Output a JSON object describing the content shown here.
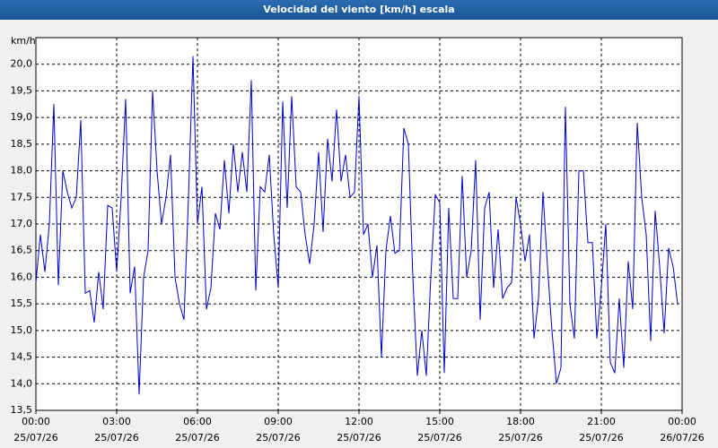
{
  "chart_data": {
    "type": "line",
    "title": "Velocidad del viento [km/h] escala",
    "y_label": "km/h",
    "x": [
      0,
      10,
      20,
      30,
      40,
      50,
      60,
      70,
      80,
      90,
      100,
      110,
      120,
      130,
      140,
      150,
      160,
      170,
      180,
      190,
      200,
      210,
      220,
      230,
      240,
      250,
      260,
      270,
      280,
      290,
      300,
      310,
      320,
      330,
      340,
      350,
      360,
      370,
      380,
      390,
      400,
      410,
      420,
      430,
      440,
      450,
      460,
      470,
      480,
      490,
      500,
      510,
      520,
      530,
      540,
      550,
      560,
      570,
      580,
      590,
      600,
      610,
      620,
      630,
      640,
      650,
      660,
      670,
      680,
      690,
      700,
      710,
      720,
      730,
      740,
      750,
      760,
      770,
      780,
      790,
      800,
      810,
      820,
      830,
      840,
      850,
      860,
      870,
      880,
      890,
      900,
      910,
      920,
      930,
      940,
      950,
      960,
      970,
      980,
      990,
      1000,
      1010,
      1020,
      1030,
      1040,
      1050,
      1060,
      1070,
      1080,
      1090,
      1100,
      1110,
      1120,
      1130,
      1140,
      1150,
      1160,
      1170,
      1180,
      1190,
      1200,
      1210,
      1220,
      1230,
      1240,
      1250,
      1260,
      1270,
      1280,
      1290,
      1300,
      1310,
      1320,
      1330,
      1340,
      1350,
      1360,
      1370,
      1380,
      1390,
      1400,
      1410,
      1420,
      1430
    ],
    "series": [
      {
        "name": "Velocidad del viento",
        "color": "#0000cc",
        "values": [
          15.9,
          16.8,
          16.1,
          17.0,
          19.25,
          15.85,
          18.0,
          17.6,
          17.3,
          17.5,
          18.95,
          15.7,
          15.75,
          15.15,
          16.1,
          15.4,
          17.35,
          17.3,
          16.1,
          17.5,
          19.35,
          15.7,
          16.2,
          13.8,
          16.0,
          16.5,
          19.5,
          18.0,
          17.0,
          17.5,
          18.3,
          16.0,
          15.5,
          15.2,
          17.5,
          20.15,
          17.0,
          17.7,
          15.4,
          15.8,
          17.2,
          16.9,
          18.2,
          17.2,
          18.5,
          17.6,
          18.35,
          17.6,
          19.7,
          15.75,
          17.7,
          17.6,
          18.3,
          16.8,
          15.8,
          19.3,
          17.3,
          19.4,
          17.7,
          17.6,
          16.8,
          16.25,
          17.0,
          18.35,
          16.85,
          18.6,
          17.8,
          19.15,
          17.8,
          18.3,
          17.5,
          17.6,
          19.4,
          16.8,
          17.0,
          16.0,
          16.6,
          14.5,
          16.5,
          17.15,
          16.45,
          16.5,
          18.8,
          18.5,
          16.0,
          14.15,
          15.0,
          14.15,
          16.0,
          17.55,
          17.4,
          14.2,
          17.3,
          15.6,
          15.6,
          17.9,
          16.0,
          16.5,
          18.2,
          15.2,
          17.3,
          17.6,
          15.8,
          16.9,
          15.6,
          15.8,
          15.9,
          17.5,
          17.0,
          16.3,
          16.8,
          14.85,
          15.6,
          17.6,
          16.2,
          15.0,
          14.0,
          14.3,
          19.2,
          15.5,
          14.85,
          18.0,
          18.0,
          16.65,
          16.65,
          14.85,
          15.8,
          17.0,
          14.4,
          14.2,
          15.6,
          14.3,
          16.3,
          15.4,
          18.9,
          17.5,
          16.8,
          14.8,
          17.25,
          16.2,
          14.95,
          16.55,
          16.2,
          15.5
        ]
      }
    ],
    "xlim": [
      0,
      1440
    ],
    "xticks": [
      {
        "value": 0,
        "label": "00:00\n25/07/26"
      },
      {
        "value": 180,
        "label": "03:00\n25/07/26"
      },
      {
        "value": 360,
        "label": "06:00\n25/07/26"
      },
      {
        "value": 540,
        "label": "09:00\n25/07/26"
      },
      {
        "value": 720,
        "label": "12:00\n25/07/26"
      },
      {
        "value": 900,
        "label": "15:00\n25/07/26"
      },
      {
        "value": 1080,
        "label": "18:00\n25/07/26"
      },
      {
        "value": 1260,
        "label": "21:00\n25/07/26"
      },
      {
        "value": 1440,
        "label": "00:00\n26/07/26"
      }
    ],
    "ylim": [
      13.5,
      20.5
    ],
    "yticks": [
      {
        "value": 13.5,
        "label": "13,5"
      },
      {
        "value": 14,
        "label": "14,0"
      },
      {
        "value": 14.5,
        "label": "14,5"
      },
      {
        "value": 15,
        "label": "15,0"
      },
      {
        "value": 15.5,
        "label": "15,5"
      },
      {
        "value": 16,
        "label": "16,0"
      },
      {
        "value": 16.5,
        "label": "16,5"
      },
      {
        "value": 17,
        "label": "17,0"
      },
      {
        "value": 17.5,
        "label": "17,5"
      },
      {
        "value": 18,
        "label": "18,0"
      },
      {
        "value": 18.5,
        "label": "18,5"
      },
      {
        "value": 19,
        "label": "19,0"
      },
      {
        "value": 19.5,
        "label": "19,5"
      },
      {
        "value": 20,
        "label": "20,0"
      }
    ],
    "grid": true
  }
}
